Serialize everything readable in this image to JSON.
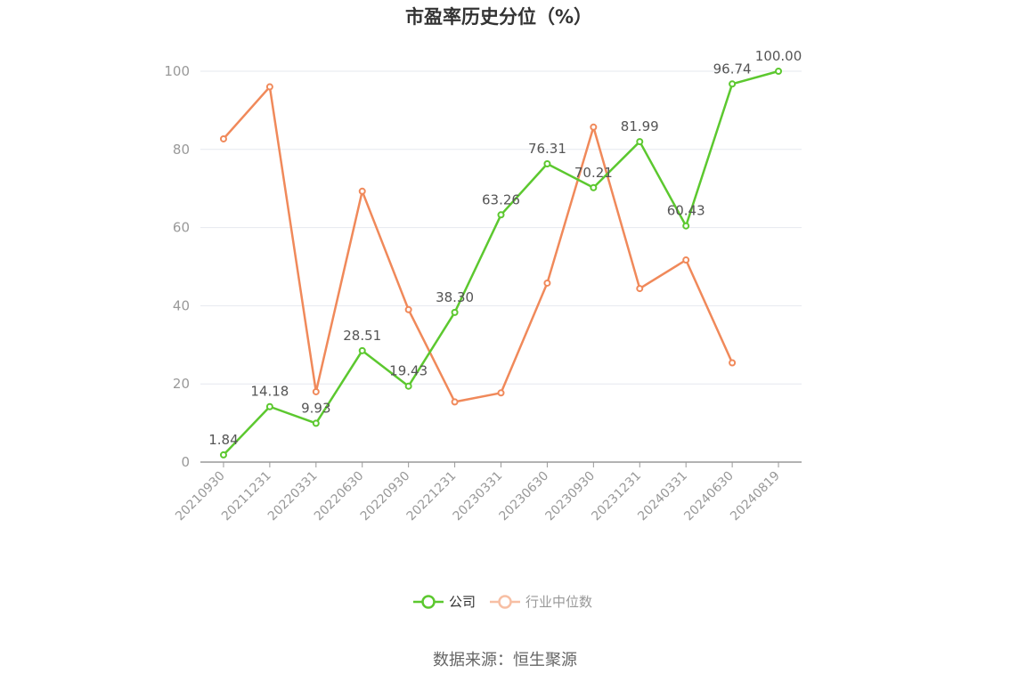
{
  "chart_data": {
    "type": "line",
    "title": "市盈率历史分位（%）",
    "source": "数据来源：恒生聚源",
    "x": [
      "20210930",
      "20211231",
      "20220331",
      "20220630",
      "20220930",
      "20221231",
      "20230331",
      "20230630",
      "20230930",
      "20231231",
      "20240331",
      "20240630",
      "20240819"
    ],
    "ylim": [
      0,
      100
    ],
    "yticks": [
      0,
      20,
      40,
      60,
      80,
      100
    ],
    "grid": true,
    "legend_position": "bottom",
    "series": [
      {
        "name": "公司",
        "color": "#5cc82f",
        "values": [
          1.84,
          14.18,
          9.93,
          28.51,
          19.43,
          38.3,
          63.26,
          76.31,
          70.21,
          81.99,
          60.43,
          96.74,
          100.0
        ],
        "labels": [
          "1.84",
          "14.18",
          "9.93",
          "28.51",
          "19.43",
          "38.30",
          "63.26",
          "76.31",
          "70.21",
          "81.99",
          "60.43",
          "96.74",
          "100.00"
        ]
      },
      {
        "name": "行业中位数",
        "color": "#f0895a",
        "values": [
          82.7,
          96.0,
          18.0,
          69.3,
          39.0,
          15.4,
          17.7,
          45.8,
          85.7,
          44.4,
          51.7,
          25.4,
          null
        ]
      }
    ]
  }
}
